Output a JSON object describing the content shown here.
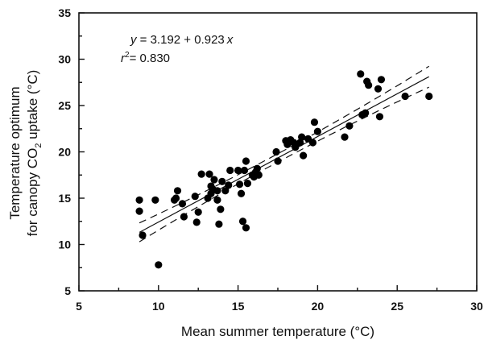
{
  "chart_data": {
    "type": "scatter",
    "xlabel_prefix": "Mean summer temperature (",
    "xlabel_unit": "°C)",
    "ylabel_line1": "Temperature optimum",
    "ylabel_line2_prefix": "for canopy CO",
    "ylabel_line2_sub": "2",
    "ylabel_line2_suffix": " uptake (°C)",
    "xlim": [
      5,
      30
    ],
    "ylim": [
      5,
      35
    ],
    "xticks": [
      5,
      10,
      15,
      20,
      25,
      30
    ],
    "yticks": [
      5,
      10,
      15,
      20,
      25,
      30,
      35
    ],
    "regression": {
      "intercept": 3.192,
      "slope": 0.923,
      "x_range": [
        8.8,
        27.0
      ]
    },
    "annotation_equation": "y = 3.192 + 0.923 x",
    "eq_y": "y",
    "eq_mid": " = 3.192 + 0.923",
    "eq_x": "x",
    "r2_r": "r",
    "r2_sup": "2",
    "r2_value": "= 0.830",
    "points": [
      [
        8.8,
        14.8
      ],
      [
        8.8,
        13.6
      ],
      [
        9.0,
        11.0
      ],
      [
        9.8,
        14.8
      ],
      [
        10.0,
        7.8
      ],
      [
        11.0,
        14.8
      ],
      [
        11.1,
        15.0
      ],
      [
        11.2,
        15.8
      ],
      [
        11.5,
        14.4
      ],
      [
        11.6,
        13.0
      ],
      [
        12.3,
        15.2
      ],
      [
        12.4,
        12.4
      ],
      [
        12.5,
        13.5
      ],
      [
        12.7,
        17.6
      ],
      [
        13.1,
        15.0
      ],
      [
        13.2,
        17.6
      ],
      [
        13.3,
        16.3
      ],
      [
        13.3,
        15.5
      ],
      [
        13.4,
        16.0
      ],
      [
        13.5,
        17.0
      ],
      [
        13.7,
        15.8
      ],
      [
        13.7,
        14.8
      ],
      [
        13.8,
        12.2
      ],
      [
        13.9,
        13.8
      ],
      [
        14.0,
        16.8
      ],
      [
        14.2,
        15.8
      ],
      [
        14.4,
        16.4
      ],
      [
        14.5,
        18.0
      ],
      [
        15.0,
        18.0
      ],
      [
        15.1,
        16.5
      ],
      [
        15.2,
        15.5
      ],
      [
        15.3,
        12.5
      ],
      [
        15.4,
        18.0
      ],
      [
        15.5,
        11.8
      ],
      [
        15.5,
        19.0
      ],
      [
        15.6,
        16.6
      ],
      [
        15.9,
        17.5
      ],
      [
        16.0,
        17.3
      ],
      [
        16.1,
        17.8
      ],
      [
        16.2,
        18.2
      ],
      [
        16.3,
        17.5
      ],
      [
        17.4,
        20.0
      ],
      [
        17.5,
        19.0
      ],
      [
        18.0,
        21.2
      ],
      [
        18.1,
        20.8
      ],
      [
        18.3,
        21.3
      ],
      [
        18.5,
        21.0
      ],
      [
        18.6,
        20.5
      ],
      [
        18.9,
        21.0
      ],
      [
        19.0,
        21.6
      ],
      [
        19.1,
        19.6
      ],
      [
        19.4,
        21.4
      ],
      [
        19.7,
        21.0
      ],
      [
        19.8,
        23.2
      ],
      [
        20.0,
        22.2
      ],
      [
        21.7,
        21.6
      ],
      [
        22.0,
        22.8
      ],
      [
        22.7,
        28.4
      ],
      [
        22.8,
        24.0
      ],
      [
        23.0,
        24.2
      ],
      [
        23.1,
        27.6
      ],
      [
        23.2,
        27.2
      ],
      [
        23.8,
        26.8
      ],
      [
        23.9,
        23.8
      ],
      [
        24.0,
        27.8
      ],
      [
        25.5,
        26.0
      ],
      [
        27.0,
        26.0
      ]
    ]
  }
}
